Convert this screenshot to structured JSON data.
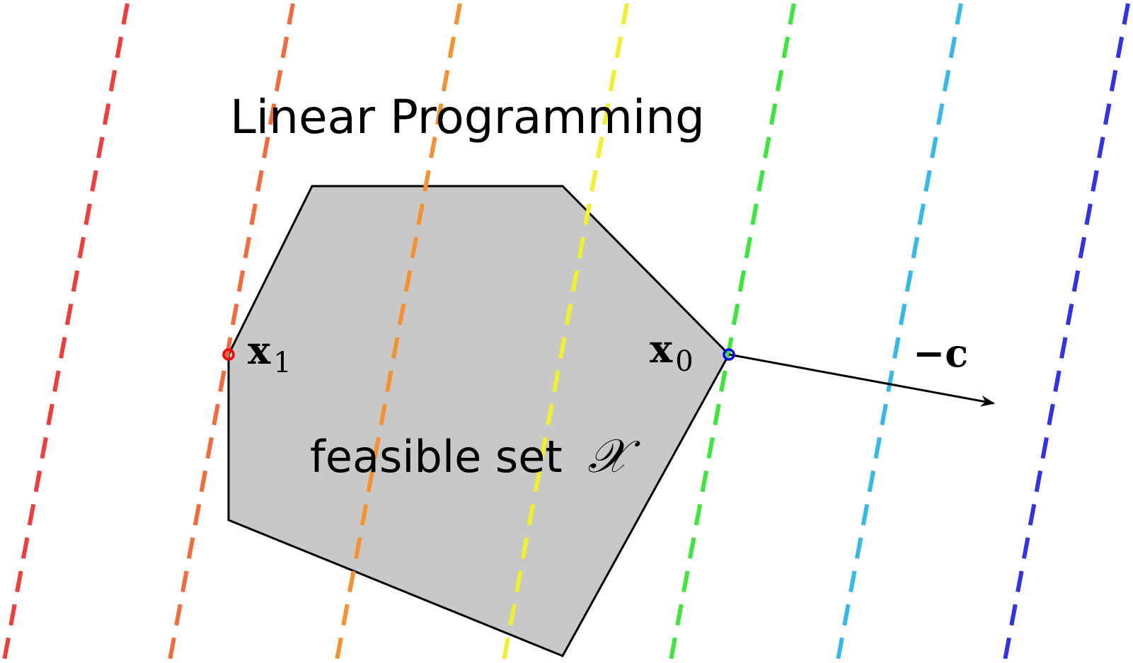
{
  "title": "Linear Programming",
  "feasible_set": {
    "label": "feasible set",
    "symbol": "𝒳",
    "fill_color": "#c8c8c8",
    "edge_color": "#000000"
  },
  "points": [
    {
      "name": "x1",
      "label": "x",
      "subscript": "1",
      "color": "#ff0000"
    },
    {
      "name": "x0",
      "label": "x",
      "subscript": "0",
      "color": "#0000ff"
    }
  ],
  "direction": {
    "label": "−c",
    "color": "#000000"
  },
  "level_lines": [
    {
      "color": "#f03c3c"
    },
    {
      "color": "#f56a3a"
    },
    {
      "color": "#f3922e"
    },
    {
      "color": "#f0f02c"
    },
    {
      "color": "#3ce63c"
    },
    {
      "color": "#37b8ea"
    },
    {
      "color": "#3232e6"
    }
  ]
}
